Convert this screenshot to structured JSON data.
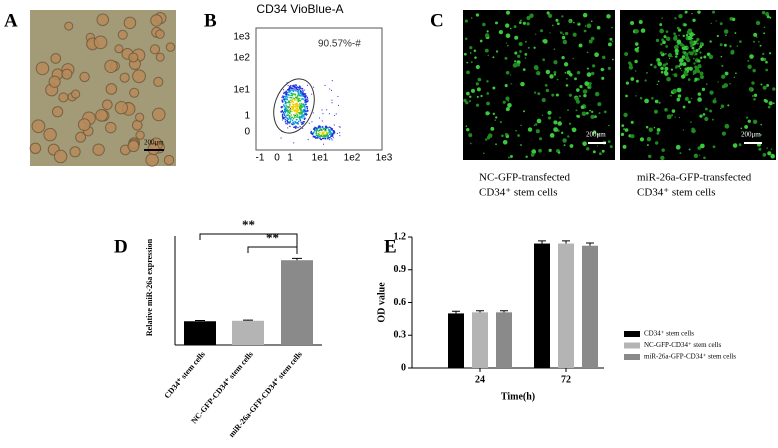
{
  "panels": {
    "A": {
      "label": "A",
      "scale_bar": "200μm"
    },
    "B": {
      "label": "B",
      "title": "CD34 VioBlue-A",
      "gate": "90.57%-#",
      "yticks": [
        "1e3",
        "1e2",
        "1e1",
        "1",
        "0"
      ],
      "xticks": [
        "-1",
        "0",
        "1",
        "1e1",
        "1e2",
        "1e3"
      ]
    },
    "C": {
      "label": "C",
      "scale_bars": [
        "200μm",
        "200μm"
      ],
      "captions": [
        [
          "NC-GFP-transfected",
          "CD34⁺ stem cells"
        ],
        [
          "miR-26a-GFP-transfected",
          "CD34⁺ stem cells"
        ]
      ]
    }
  },
  "chart_data": [
    {
      "type": "bar",
      "label": "D",
      "ylabel": "Relative miR-26a expression",
      "categories": [
        "CD34⁺ stem cells",
        "NC-GFP-CD34⁺ stem cells",
        "miR-26a-GFP-CD34⁺ stem cells"
      ],
      "values": [
        1.0,
        1.02,
        3.57
      ],
      "errors": [
        0.03,
        0.03,
        0.08
      ],
      "colors": [
        "#000000",
        "#b4b4b4",
        "#8a8a8a"
      ],
      "ylim": [
        0,
        4
      ],
      "annotations": [
        "**",
        "**"
      ]
    },
    {
      "type": "grouped_bar",
      "label": "E",
      "xlabel": "Time(h)",
      "ylabel": "OD value",
      "categories": [
        "24",
        "72"
      ],
      "series": [
        {
          "name": "CD34⁺ stem cells",
          "color": "#000000",
          "values": [
            0.5,
            1.14
          ],
          "errors": [
            0.02,
            0.025
          ]
        },
        {
          "name": "NC-GFP-CD34⁺ stem cells",
          "color": "#b4b4b4",
          "values": [
            0.51,
            1.14
          ],
          "errors": [
            0.015,
            0.025
          ]
        },
        {
          "name": "miR-26a-GFP-CD34⁺ stem cells",
          "color": "#8a8a8a",
          "values": [
            0.51,
            1.12
          ],
          "errors": [
            0.015,
            0.025
          ]
        }
      ],
      "ylim": [
        0,
        1.2
      ],
      "yticks": [
        0,
        0.3,
        0.6,
        0.9,
        1.2
      ],
      "legend": "right"
    }
  ]
}
